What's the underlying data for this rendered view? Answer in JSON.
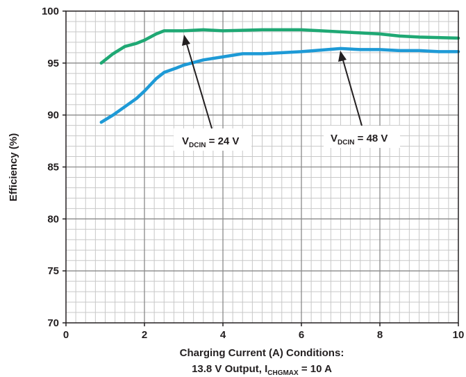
{
  "chart_data": {
    "type": "line",
    "xlabel": "Charging Current (A) Conditions:",
    "xlabel_line2": {
      "prefix": "13.8 V Output, I",
      "sub": "CHGMAX",
      "suffix": " = 10 A"
    },
    "ylabel": "Efficiency (%)",
    "xlim": [
      0,
      10
    ],
    "ylim": [
      70,
      100
    ],
    "x_ticks": [
      "0",
      "2",
      "4",
      "6",
      "8",
      "10"
    ],
    "y_ticks": [
      "70",
      "75",
      "80",
      "85",
      "90",
      "95",
      "100"
    ],
    "grid": true,
    "series": [
      {
        "name": {
          "main": "V",
          "sub": "DCIN",
          "rest": " = 24 V"
        },
        "color": "#1fa874",
        "x": [
          0.9,
          1.2,
          1.5,
          1.8,
          2.0,
          2.3,
          2.5,
          2.8,
          3.0,
          3.5,
          4.0,
          5.0,
          6.0,
          6.5,
          7.0,
          7.5,
          8.0,
          8.5,
          9.0,
          10.0
        ],
        "y": [
          95.0,
          95.9,
          96.6,
          96.9,
          97.2,
          97.8,
          98.1,
          98.1,
          98.1,
          98.2,
          98.1,
          98.2,
          98.2,
          98.1,
          98.0,
          97.9,
          97.8,
          97.6,
          97.5,
          97.4
        ]
      },
      {
        "name": {
          "main": "V",
          "sub": "DCIN",
          "rest": " = 48 V"
        },
        "color": "#1e9ad6",
        "x": [
          0.9,
          1.2,
          1.5,
          1.8,
          2.0,
          2.3,
          2.5,
          2.8,
          3.0,
          3.5,
          4.0,
          4.5,
          5.0,
          6.0,
          7.0,
          7.5,
          8.0,
          8.5,
          9.0,
          9.5,
          10.0
        ],
        "y": [
          89.3,
          90.0,
          90.8,
          91.6,
          92.3,
          93.5,
          94.1,
          94.5,
          94.8,
          95.3,
          95.6,
          95.9,
          95.9,
          96.1,
          96.4,
          96.3,
          96.3,
          96.2,
          96.2,
          96.1,
          96.1
        ]
      }
    ]
  }
}
